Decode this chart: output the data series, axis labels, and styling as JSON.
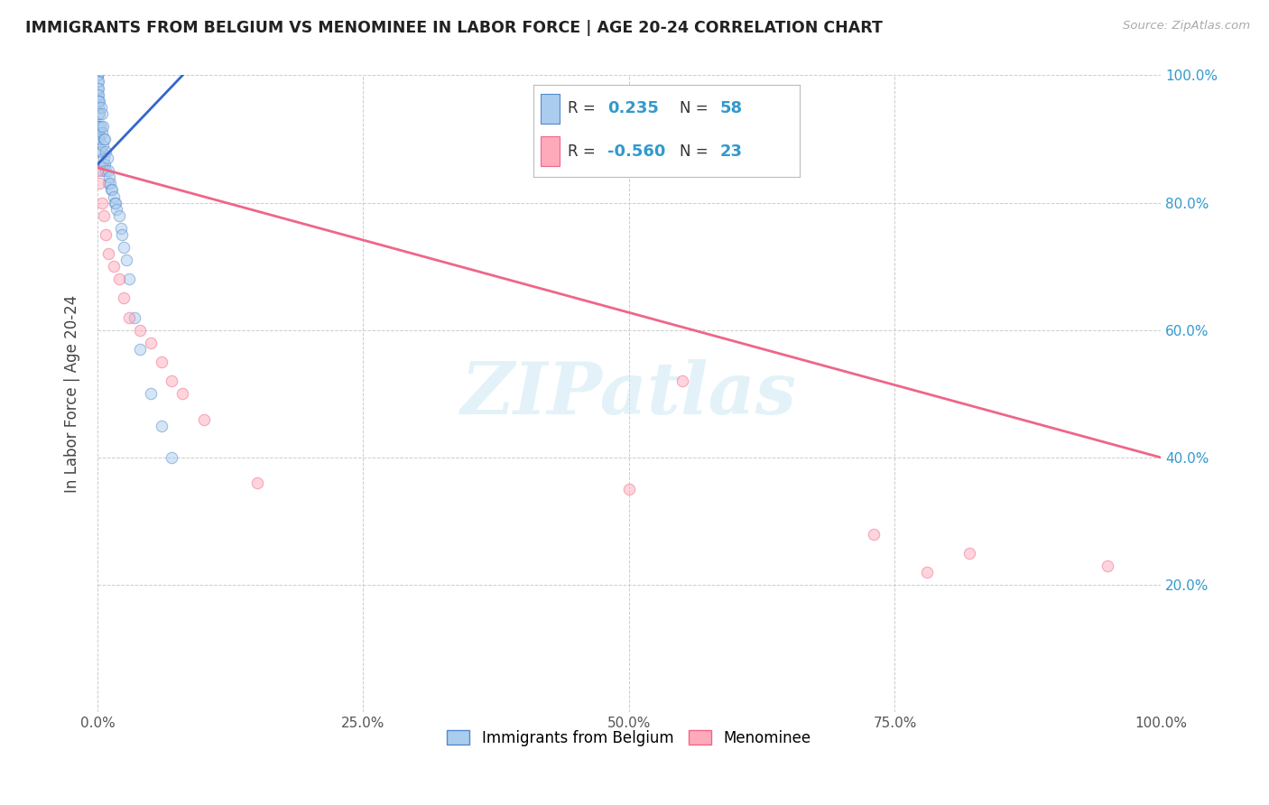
{
  "title": "IMMIGRANTS FROM BELGIUM VS MENOMINEE IN LABOR FORCE | AGE 20-24 CORRELATION CHART",
  "source": "Source: ZipAtlas.com",
  "ylabel": "In Labor Force | Age 20-24",
  "background_color": "#ffffff",
  "blue_color": "#aaccee",
  "pink_color": "#ffaabb",
  "blue_edge_color": "#5588cc",
  "pink_edge_color": "#ee6688",
  "blue_line_color": "#3366cc",
  "pink_line_color": "#ee6688",
  "legend_R_blue": "0.235",
  "legend_N_blue": "58",
  "legend_R_pink": "-0.560",
  "legend_N_pink": "23",
  "legend_label_blue": "Immigrants from Belgium",
  "legend_label_pink": "Menominee",
  "blue_points_x": [
    0.0,
    0.0,
    0.0,
    0.0,
    0.0,
    0.0,
    0.0,
    0.001,
    0.001,
    0.001,
    0.001,
    0.001,
    0.001,
    0.001,
    0.001,
    0.001,
    0.002,
    0.002,
    0.002,
    0.002,
    0.003,
    0.003,
    0.003,
    0.004,
    0.004,
    0.004,
    0.004,
    0.005,
    0.005,
    0.005,
    0.006,
    0.006,
    0.007,
    0.007,
    0.008,
    0.008,
    0.009,
    0.01,
    0.01,
    0.011,
    0.012,
    0.013,
    0.014,
    0.015,
    0.016,
    0.017,
    0.018,
    0.02,
    0.022,
    0.023,
    0.025,
    0.027,
    0.03,
    0.035,
    0.04,
    0.05,
    0.06,
    0.07
  ],
  "blue_points_y": [
    1.0,
    1.0,
    1.0,
    0.99,
    0.98,
    0.97,
    0.96,
    0.99,
    0.98,
    0.97,
    0.96,
    0.95,
    0.94,
    0.92,
    0.91,
    0.9,
    0.96,
    0.94,
    0.92,
    0.9,
    0.95,
    0.92,
    0.88,
    0.94,
    0.91,
    0.88,
    0.85,
    0.92,
    0.89,
    0.86,
    0.9,
    0.87,
    0.9,
    0.86,
    0.88,
    0.85,
    0.87,
    0.85,
    0.83,
    0.84,
    0.83,
    0.82,
    0.82,
    0.81,
    0.8,
    0.8,
    0.79,
    0.78,
    0.76,
    0.75,
    0.73,
    0.71,
    0.68,
    0.62,
    0.57,
    0.5,
    0.45,
    0.4
  ],
  "pink_points_x": [
    0.0,
    0.002,
    0.004,
    0.006,
    0.008,
    0.01,
    0.015,
    0.02,
    0.025,
    0.03,
    0.04,
    0.05,
    0.06,
    0.07,
    0.08,
    0.1,
    0.15,
    0.5,
    0.55,
    0.73,
    0.78,
    0.82,
    0.95
  ],
  "pink_points_y": [
    0.85,
    0.83,
    0.8,
    0.78,
    0.75,
    0.72,
    0.7,
    0.68,
    0.65,
    0.62,
    0.6,
    0.58,
    0.55,
    0.52,
    0.5,
    0.46,
    0.36,
    0.35,
    0.52,
    0.28,
    0.22,
    0.25,
    0.23
  ],
  "blue_line_x": [
    0.0,
    0.08
  ],
  "blue_line_y": [
    0.86,
    1.0
  ],
  "pink_line_x": [
    0.0,
    1.0
  ],
  "pink_line_y": [
    0.855,
    0.4
  ],
  "xlim": [
    0.0,
    1.0
  ],
  "ylim": [
    0.0,
    1.0
  ],
  "xticks": [
    0.0,
    0.25,
    0.5,
    0.75,
    1.0
  ],
  "xtick_labels": [
    "0.0%",
    "25.0%",
    "50.0%",
    "75.0%",
    "100.0%"
  ],
  "ytick_labels_right": [
    "",
    "20.0%",
    "40.0%",
    "60.0%",
    "80.0%",
    "100.0%"
  ],
  "ytick_values": [
    0.0,
    0.2,
    0.4,
    0.6,
    0.8,
    1.0
  ],
  "grid_color": "#cccccc",
  "marker_size": 80,
  "marker_alpha": 0.5,
  "watermark": "ZIPatlas",
  "ytick_label_color": "#3399cc",
  "xtick_label_color": "#555555"
}
